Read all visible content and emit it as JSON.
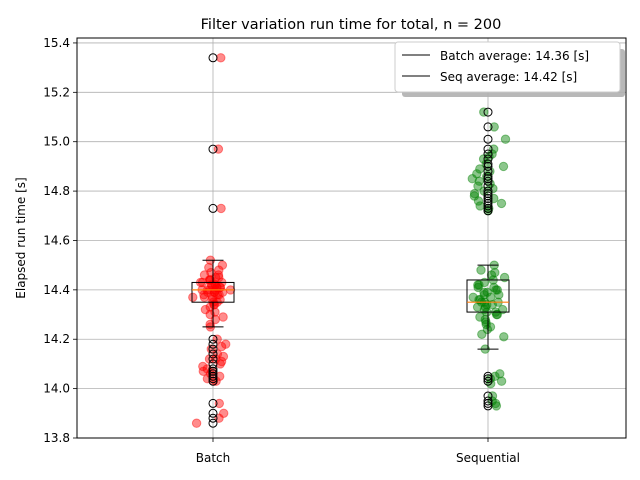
{
  "chart_data": {
    "type": "scatter",
    "subtype": "box-strip",
    "title": "Filter variation run time for total, n = 200",
    "xlabel": "",
    "ylabel": "Elapsed run time [s]",
    "categories": [
      "Batch",
      "Sequential"
    ],
    "ylim": [
      13.8,
      15.42
    ],
    "yticks": [
      "13.8",
      "14.0",
      "14.2",
      "14.4",
      "14.6",
      "14.8",
      "15.0",
      "15.2",
      "15.4"
    ],
    "grid": true,
    "legend_position": "upper right",
    "legend": [
      {
        "label": "Batch average: 14.36 [s]"
      },
      {
        "label": "Seq average: 14.42 [s]"
      }
    ],
    "boxes": [
      {
        "category": "Batch",
        "whisker_low": 14.25,
        "q1": 14.35,
        "median": 14.4,
        "q3": 14.43,
        "whisker_high": 14.52,
        "color": "#ff0000",
        "fliers": [
          15.34,
          14.97,
          14.73,
          14.2,
          14.18,
          14.16,
          14.14,
          14.12,
          14.1,
          14.08,
          14.07,
          14.06,
          14.05,
          14.04,
          14.03,
          13.94,
          13.9,
          13.88,
          13.86
        ]
      },
      {
        "category": "Sequential",
        "whisker_low": 14.16,
        "q1": 14.31,
        "median": 14.35,
        "q3": 14.44,
        "whisker_high": 14.5,
        "color": "#008000",
        "fliers": [
          15.12,
          15.06,
          15.01,
          14.97,
          14.95,
          14.93,
          14.91,
          14.9,
          14.88,
          14.86,
          14.85,
          14.84,
          14.82,
          14.8,
          14.79,
          14.78,
          14.77,
          14.76,
          14.75,
          14.74,
          14.73,
          14.72,
          14.05,
          14.04,
          14.03,
          13.97,
          13.95,
          13.94,
          13.93
        ]
      }
    ],
    "series": [
      {
        "name": "Batch",
        "color": "#ff0000",
        "values": [
          15.34,
          14.97,
          14.73,
          14.52,
          14.5,
          14.49,
          14.48,
          14.47,
          14.46,
          14.46,
          14.45,
          14.45,
          14.44,
          14.44,
          14.44,
          14.43,
          14.43,
          14.43,
          14.42,
          14.42,
          14.42,
          14.42,
          14.41,
          14.41,
          14.41,
          14.41,
          14.4,
          14.4,
          14.4,
          14.4,
          14.4,
          14.39,
          14.39,
          14.39,
          14.39,
          14.38,
          14.38,
          14.38,
          14.37,
          14.37,
          14.37,
          14.36,
          14.36,
          14.35,
          14.35,
          14.34,
          14.34,
          14.33,
          14.32,
          14.31,
          14.3,
          14.29,
          14.28,
          14.26,
          14.25,
          14.2,
          14.18,
          14.17,
          14.16,
          14.14,
          14.13,
          14.12,
          14.12,
          14.11,
          14.1,
          14.09,
          14.08,
          14.07,
          14.07,
          14.06,
          14.05,
          14.04,
          14.03,
          14.03,
          13.94,
          13.9,
          13.88,
          13.86
        ]
      },
      {
        "name": "Sequential",
        "color": "#008000",
        "values": [
          15.12,
          15.06,
          15.01,
          14.97,
          14.95,
          14.94,
          14.93,
          14.91,
          14.9,
          14.89,
          14.88,
          14.87,
          14.86,
          14.85,
          14.84,
          14.83,
          14.82,
          14.81,
          14.8,
          14.79,
          14.78,
          14.77,
          14.76,
          14.75,
          14.74,
          14.73,
          14.72,
          14.5,
          14.48,
          14.47,
          14.46,
          14.45,
          14.44,
          14.43,
          14.42,
          14.42,
          14.41,
          14.41,
          14.4,
          14.4,
          14.39,
          14.39,
          14.38,
          14.38,
          14.37,
          14.37,
          14.36,
          14.36,
          14.35,
          14.35,
          14.35,
          14.34,
          14.34,
          14.33,
          14.33,
          14.32,
          14.32,
          14.31,
          14.31,
          14.3,
          14.3,
          14.29,
          14.28,
          14.27,
          14.26,
          14.25,
          14.24,
          14.22,
          14.21,
          14.16,
          14.06,
          14.05,
          14.04,
          14.03,
          14.02,
          13.97,
          13.95,
          13.94,
          13.93
        ]
      }
    ]
  }
}
